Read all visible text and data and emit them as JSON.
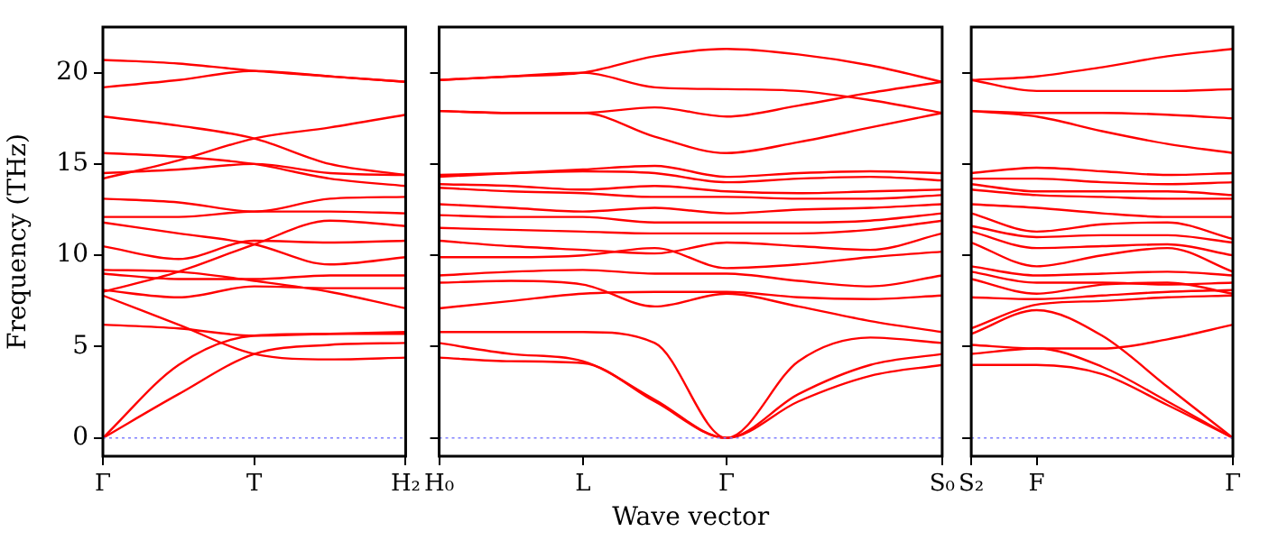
{
  "chart_data": [
    {
      "type": "line",
      "ylabel": "Frequency (THz)",
      "categories": [
        "Γ",
        null,
        "T",
        null,
        "H₂"
      ],
      "ylim": [
        -1,
        22.5
      ],
      "yticks": [
        0,
        5,
        10,
        15,
        20
      ],
      "ref_lines": [
        {
          "axis": "y",
          "value": 0,
          "color": "#8080ff",
          "line_style": "dotted"
        }
      ],
      "series": [
        {
          "color": "#ff0000",
          "values": [
            0,
            2.4,
            4.6,
            5.1,
            5.2
          ]
        },
        {
          "color": "#ff0000",
          "values": [
            0,
            4.0,
            5.6,
            5.7,
            5.7
          ]
        },
        {
          "color": "#ff0000",
          "values": [
            6.2,
            6.0,
            5.6,
            5.7,
            5.8
          ]
        },
        {
          "color": "#ff0000",
          "values": [
            7.8,
            6.2,
            4.6,
            4.3,
            4.4
          ]
        },
        {
          "color": "#ff0000",
          "values": [
            8.1,
            7.7,
            8.3,
            8.2,
            8.2
          ]
        },
        {
          "color": "#ff0000",
          "values": [
            8.0,
            9.1,
            10.6,
            11.9,
            11.6
          ]
        },
        {
          "color": "#ff0000",
          "values": [
            9.0,
            8.7,
            8.7,
            8.9,
            8.9
          ]
        },
        {
          "color": "#ff0000",
          "values": [
            9.2,
            9.1,
            8.6,
            8.0,
            7.1
          ]
        },
        {
          "color": "#ff0000",
          "values": [
            10.5,
            9.8,
            10.8,
            10.7,
            10.8
          ]
        },
        {
          "color": "#ff0000",
          "values": [
            11.8,
            11.2,
            10.6,
            9.5,
            9.9
          ]
        },
        {
          "color": "#ff0000",
          "values": [
            12.1,
            12.1,
            12.4,
            12.4,
            12.3
          ]
        },
        {
          "color": "#ff0000",
          "values": [
            13.1,
            12.9,
            12.4,
            13.1,
            13.2
          ]
        },
        {
          "color": "#ff0000",
          "values": [
            14.2,
            15.2,
            16.4,
            17.0,
            17.7
          ]
        },
        {
          "color": "#ff0000",
          "values": [
            14.5,
            14.7,
            15.0,
            14.5,
            14.4
          ]
        },
        {
          "color": "#ff0000",
          "values": [
            15.6,
            15.4,
            15.0,
            14.2,
            13.8
          ]
        },
        {
          "color": "#ff0000",
          "values": [
            17.6,
            17.1,
            16.4,
            15.0,
            14.4
          ]
        },
        {
          "color": "#ff0000",
          "values": [
            19.2,
            19.6,
            20.1,
            19.8,
            19.5
          ]
        },
        {
          "color": "#ff0000",
          "values": [
            20.7,
            20.5,
            20.1,
            19.8,
            19.5
          ]
        }
      ]
    },
    {
      "type": "line",
      "xlabel": "Wave vector",
      "categories": [
        "H₀",
        null,
        "L",
        null,
        "Γ",
        null,
        null,
        "S₀"
      ],
      "ylim": [
        -1,
        22.5
      ],
      "yticks": [
        0,
        5,
        10,
        15,
        20
      ],
      "tick_labels": "x",
      "ref_lines": [
        {
          "axis": "y",
          "value": 0,
          "color": "#8080ff",
          "line_style": "dotted"
        }
      ],
      "series": [
        {
          "color": "#ff0000",
          "values": [
            4.4,
            4.2,
            4.1,
            2.0,
            0,
            2.0,
            3.4,
            4.0
          ]
        },
        {
          "color": "#ff0000",
          "values": [
            5.2,
            4.6,
            4.2,
            2.1,
            0,
            2.4,
            4.0,
            4.6
          ]
        },
        {
          "color": "#ff0000",
          "values": [
            5.8,
            5.8,
            5.8,
            5.2,
            0,
            4.2,
            5.5,
            5.2
          ]
        },
        {
          "color": "#ff0000",
          "values": [
            7.1,
            7.5,
            7.9,
            8.0,
            8.0,
            7.7,
            7.6,
            7.8
          ]
        },
        {
          "color": "#ff0000",
          "values": [
            8.5,
            8.6,
            8.4,
            7.2,
            7.9,
            7.2,
            6.4,
            5.8
          ]
        },
        {
          "color": "#ff0000",
          "values": [
            8.9,
            9.1,
            9.2,
            9.0,
            9.0,
            8.6,
            8.3,
            8.9
          ]
        },
        {
          "color": "#ff0000",
          "values": [
            9.9,
            9.9,
            10.0,
            10.4,
            9.3,
            9.5,
            9.9,
            10.2
          ]
        },
        {
          "color": "#ff0000",
          "values": [
            10.8,
            10.5,
            10.3,
            10.1,
            10.7,
            10.5,
            10.3,
            11.2
          ]
        },
        {
          "color": "#ff0000",
          "values": [
            11.5,
            11.4,
            11.3,
            11.2,
            11.2,
            11.2,
            11.4,
            11.9
          ]
        },
        {
          "color": "#ff0000",
          "values": [
            12.2,
            12.1,
            12.1,
            11.8,
            11.8,
            11.8,
            11.9,
            12.3
          ]
        },
        {
          "color": "#ff0000",
          "values": [
            12.8,
            12.6,
            12.4,
            12.6,
            12.3,
            12.5,
            12.6,
            12.8
          ]
        },
        {
          "color": "#ff0000",
          "values": [
            13.7,
            13.5,
            13.4,
            13.2,
            13.2,
            13.1,
            13.1,
            13.3
          ]
        },
        {
          "color": "#ff0000",
          "values": [
            13.9,
            13.8,
            13.6,
            13.8,
            13.5,
            13.4,
            13.5,
            13.6
          ]
        },
        {
          "color": "#ff0000",
          "values": [
            14.4,
            14.5,
            14.6,
            14.5,
            14.0,
            14.2,
            14.3,
            14.1
          ]
        },
        {
          "color": "#ff0000",
          "values": [
            14.3,
            14.5,
            14.7,
            14.9,
            14.3,
            14.5,
            14.6,
            14.5
          ]
        },
        {
          "color": "#ff0000",
          "values": [
            17.9,
            17.8,
            17.8,
            16.5,
            15.6,
            16.2,
            17.0,
            17.8
          ]
        },
        {
          "color": "#ff0000",
          "values": [
            17.9,
            17.8,
            17.8,
            18.1,
            17.6,
            18.2,
            18.9,
            19.5
          ]
        },
        {
          "color": "#ff0000",
          "values": [
            19.6,
            19.8,
            20.0,
            19.2,
            19.1,
            19.0,
            18.5,
            17.8
          ]
        },
        {
          "color": "#ff0000",
          "values": [
            19.6,
            19.8,
            20.0,
            20.9,
            21.3,
            21.0,
            20.4,
            19.5
          ]
        }
      ]
    },
    {
      "type": "line",
      "categories": [
        "S₂",
        "F",
        null,
        null,
        "Γ"
      ],
      "ylim": [
        -1,
        22.5
      ],
      "yticks": [
        0,
        5,
        10,
        15,
        20
      ],
      "tick_labels": "x",
      "ref_lines": [
        {
          "axis": "y",
          "value": 0,
          "color": "#8080ff",
          "line_style": "dotted"
        }
      ],
      "series": [
        {
          "color": "#ff0000",
          "values": [
            4.0,
            4.0,
            3.5,
            1.8,
            0
          ]
        },
        {
          "color": "#ff0000",
          "values": [
            4.6,
            4.9,
            3.9,
            2.0,
            0
          ]
        },
        {
          "color": "#ff0000",
          "values": [
            5.1,
            4.9,
            4.9,
            5.4,
            6.2
          ]
        },
        {
          "color": "#ff0000",
          "values": [
            5.7,
            7.0,
            5.6,
            2.8,
            0
          ]
        },
        {
          "color": "#ff0000",
          "values": [
            6.0,
            7.3,
            7.5,
            7.7,
            7.8
          ]
        },
        {
          "color": "#ff0000",
          "values": [
            7.7,
            7.6,
            7.8,
            8.0,
            8.1
          ]
        },
        {
          "color": "#ff0000",
          "values": [
            8.7,
            7.9,
            8.4,
            8.5,
            7.9
          ]
        },
        {
          "color": "#ff0000",
          "values": [
            9.1,
            8.5,
            8.5,
            8.4,
            8.5
          ]
        },
        {
          "color": "#ff0000",
          "values": [
            9.4,
            8.9,
            9.0,
            9.1,
            8.9
          ]
        },
        {
          "color": "#ff0000",
          "values": [
            10.7,
            9.4,
            10.0,
            10.4,
            9.1
          ]
        },
        {
          "color": "#ff0000",
          "values": [
            11.3,
            10.4,
            10.5,
            10.6,
            10.0
          ]
        },
        {
          "color": "#ff0000",
          "values": [
            11.6,
            11.0,
            11.1,
            11.1,
            10.7
          ]
        },
        {
          "color": "#ff0000",
          "values": [
            12.3,
            11.3,
            11.7,
            11.8,
            10.9
          ]
        },
        {
          "color": "#ff0000",
          "values": [
            12.8,
            12.6,
            12.3,
            12.1,
            12.1
          ]
        },
        {
          "color": "#ff0000",
          "values": [
            13.6,
            13.3,
            13.2,
            13.1,
            13.1
          ]
        },
        {
          "color": "#ff0000",
          "values": [
            13.9,
            13.5,
            13.5,
            13.5,
            13.3
          ]
        },
        {
          "color": "#ff0000",
          "values": [
            14.2,
            14.2,
            14.0,
            13.9,
            14.0
          ]
        },
        {
          "color": "#ff0000",
          "values": [
            14.5,
            14.8,
            14.6,
            14.4,
            14.5
          ]
        },
        {
          "color": "#ff0000",
          "values": [
            17.9,
            17.8,
            17.8,
            17.7,
            17.5
          ]
        },
        {
          "color": "#ff0000",
          "values": [
            17.9,
            17.6,
            16.8,
            16.1,
            15.6
          ]
        },
        {
          "color": "#ff0000",
          "values": [
            19.6,
            19.0,
            19.0,
            19.0,
            19.1
          ]
        },
        {
          "color": "#ff0000",
          "values": [
            19.6,
            19.8,
            20.3,
            20.9,
            21.3
          ]
        }
      ]
    }
  ]
}
